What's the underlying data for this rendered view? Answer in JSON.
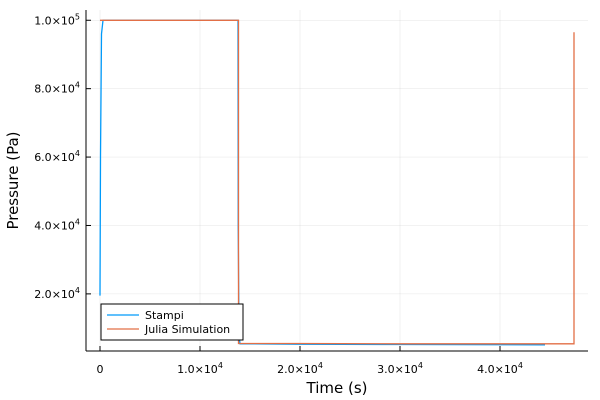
{
  "chart_data": {
    "type": "line",
    "title": "",
    "xlabel": "Time (s)",
    "ylabel": "Pressure (Pa)",
    "xlim": [
      -1400,
      48800
    ],
    "ylim": [
      3300,
      103000
    ],
    "grid": true,
    "legend_position": "bottom-left",
    "x_ticks": [
      {
        "value": 0,
        "label": "0"
      },
      {
        "value": 10000,
        "mantissa": "1.0",
        "times": "×",
        "base": "10",
        "exp": "4"
      },
      {
        "value": 20000,
        "mantissa": "2.0",
        "times": "×",
        "base": "10",
        "exp": "4"
      },
      {
        "value": 30000,
        "mantissa": "3.0",
        "times": "×",
        "base": "10",
        "exp": "4"
      },
      {
        "value": 40000,
        "mantissa": "4.0",
        "times": "×",
        "base": "10",
        "exp": "4"
      }
    ],
    "y_ticks": [
      {
        "value": 20000,
        "mantissa": "2.0",
        "times": "×",
        "base": "10",
        "exp": "4"
      },
      {
        "value": 40000,
        "mantissa": "4.0",
        "times": "×",
        "base": "10",
        "exp": "4"
      },
      {
        "value": 60000,
        "mantissa": "6.0",
        "times": "×",
        "base": "10",
        "exp": "4"
      },
      {
        "value": 80000,
        "mantissa": "8.0",
        "times": "×",
        "base": "10",
        "exp": "4"
      },
      {
        "value": 100000,
        "mantissa": "1.0",
        "times": "×",
        "base": "10",
        "exp": "5"
      }
    ],
    "series": [
      {
        "name": "Stampi",
        "color": "#009AFA",
        "x": [
          0,
          50,
          150,
          300,
          1000,
          13800,
          13820,
          13900,
          14000,
          20000,
          30000,
          44500
        ],
        "y": [
          19500,
          60000,
          96000,
          100000,
          100000,
          100000,
          40000,
          8000,
          5400,
          5300,
          5200,
          5100
        ]
      },
      {
        "name": "Julia Simulation",
        "color": "#E26F46",
        "x": [
          0,
          0,
          13850,
          13850,
          20000,
          30000,
          47400,
          47400
        ],
        "y": [
          100000,
          100000,
          100000,
          5500,
          5500,
          5400,
          5400,
          96500
        ]
      }
    ]
  }
}
